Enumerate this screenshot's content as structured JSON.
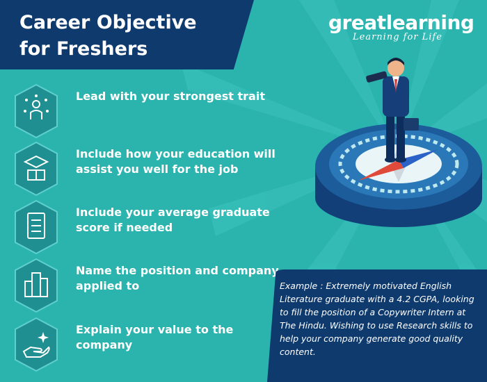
{
  "header": {
    "title": "Career Objective\nfor Freshers"
  },
  "brand": {
    "name": "greatlearning",
    "tagline": "Learning for Life"
  },
  "items": [
    {
      "label": "Lead with your strongest trait",
      "icon": "person-network-icon"
    },
    {
      "label": "Include how your education will assist you well for the job",
      "icon": "graduation-books-icon"
    },
    {
      "label": "Include your average graduate score if needed",
      "icon": "report-card-icon"
    },
    {
      "label": "Name the position and company applied to",
      "icon": "office-buildings-icon"
    },
    {
      "label": "Explain your value to the company",
      "icon": "hand-sparkles-icon"
    }
  ],
  "example": {
    "text": "Example :  Extremely motivated English Literature graduate with a 4.2 CGPA, looking to fill the position of a Copywriter Intern at The Hindu. Wishing to use Research skills to help your company generate good quality content."
  },
  "colors": {
    "background": "#2bb3ae",
    "navy": "#0f3a6e",
    "badge": "#1f8f92",
    "white": "#ffffff"
  }
}
